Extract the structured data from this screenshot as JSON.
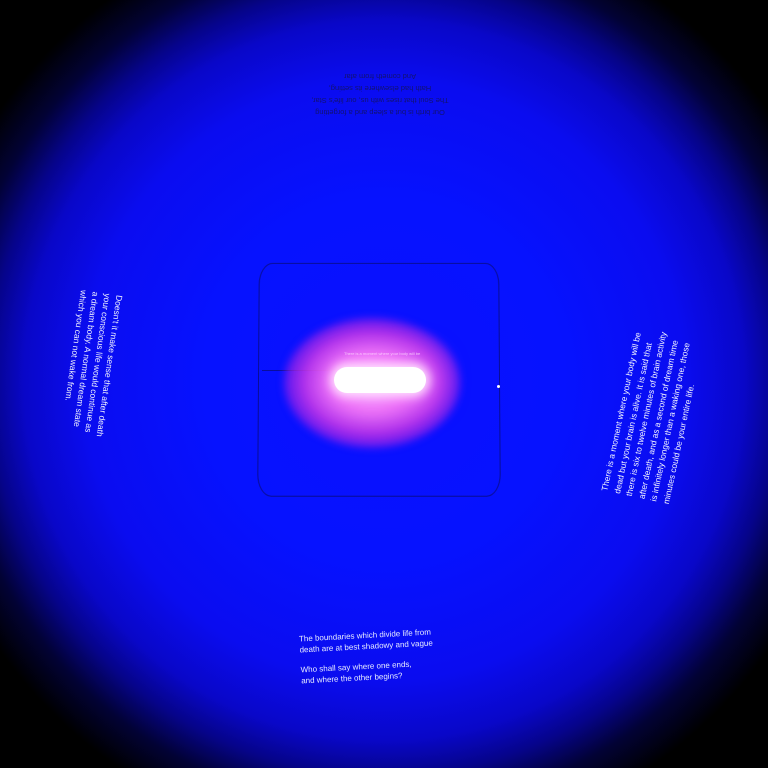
{
  "panels": {
    "top": {
      "lines": [
        "Our birth is but a sleep and a forgetting",
        "The Soul that rises with us, our life's Star,",
        "Hath had elsewhere its setting,",
        "And cometh from afar"
      ]
    },
    "left": {
      "lines": [
        "Doesn't it make sense that after death",
        "your conscious life would continue as",
        "a dream body. A normal dream state",
        "which you can not wake from."
      ]
    },
    "right": {
      "lines": [
        "There is a moment where your body will be",
        "dead but your brain is alive. It is said that",
        "there is six to twelve minutes of brain activity",
        "after death, and as a second of dream time",
        "is infinitely longer than a waking one, those",
        "minutes could be your entire life."
      ]
    },
    "bottom": {
      "first": [
        "The boundaries which divide life from",
        "death are at best shadowy and vague"
      ],
      "second": [
        "Who shall say where one ends,",
        "and where the other begins?"
      ]
    },
    "center": {
      "caption": "There is a moment where your body will be"
    }
  },
  "colors": {
    "background": "#0a10ff",
    "glow": "#f078f0",
    "text": "#f2f4ff"
  }
}
